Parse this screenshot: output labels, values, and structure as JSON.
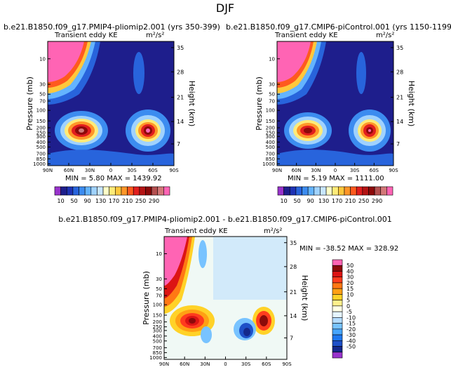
{
  "figure": {
    "title": "DJF"
  },
  "chart_data": [
    {
      "type": "heatmap",
      "title": "b.e21.B1850.f09_g17.PMIP4-pliomip2.001 (yrs 350-399)",
      "subtitle_left": "Transient eddy KE",
      "subtitle_right": "m²/s²",
      "ylabel": "Pressure (mb)",
      "ylabel_right": "Height (km)",
      "xticks": [
        "90N",
        "60N",
        "30N",
        "0",
        "30S",
        "60S",
        "90S"
      ],
      "yticks": [
        "10",
        "30",
        "50",
        "70",
        "100",
        "150",
        "200",
        "250",
        "300",
        "400",
        "500",
        "700",
        "850",
        "1000"
      ],
      "yticks_right": [
        "35",
        "28",
        "21",
        "14",
        "7"
      ],
      "stats": "MIN =    5.80   MAX = 1439.92",
      "colorbar_labels": [
        "10",
        "50",
        "90",
        "130",
        "170",
        "210",
        "250",
        "290"
      ],
      "features": [
        {
          "name": "polar-stratospheric-jet",
          "lat": 75,
          "pressure": 10,
          "value": 300
        },
        {
          "name": "nh-storm-track",
          "lat": 42,
          "pressure": 250,
          "value": 290
        },
        {
          "name": "sh-storm-track",
          "lat": -50,
          "pressure": 250,
          "value": 290
        }
      ]
    },
    {
      "type": "heatmap",
      "title": "b.e21.B1850.f09_g17.CMIP6-piControl.001 (yrs 1150-1199)",
      "subtitle_left": "Transient eddy KE",
      "subtitle_right": "m²/s²",
      "ylabel": "Pressure (mb)",
      "ylabel_right": "Height (km)",
      "xticks": [
        "90N",
        "60N",
        "30N",
        "0",
        "30S",
        "60S",
        "90S"
      ],
      "yticks": [
        "10",
        "30",
        "50",
        "70",
        "100",
        "150",
        "200",
        "250",
        "300",
        "400",
        "500",
        "700",
        "850",
        "1000"
      ],
      "yticks_right": [
        "35",
        "28",
        "21",
        "14",
        "7"
      ],
      "stats": "MIN =    5.19   MAX = 1111.00",
      "colorbar_labels": [
        "10",
        "50",
        "90",
        "130",
        "170",
        "210",
        "250",
        "290"
      ],
      "features": [
        {
          "name": "polar-stratospheric-jet",
          "lat": 75,
          "pressure": 10,
          "value": 300
        },
        {
          "name": "nh-storm-track",
          "lat": 42,
          "pressure": 250,
          "value": 270
        },
        {
          "name": "sh-storm-track",
          "lat": -50,
          "pressure": 250,
          "value": 290
        }
      ]
    },
    {
      "type": "heatmap",
      "title": "b.e21.B1850.f09_g17.PMIP4-pliomip2.001 - b.e21.B1850.f09_g17.CMIP6-piControl.001",
      "subtitle_left": "Transient eddy KE",
      "subtitle_right": "m²/s²",
      "ylabel": "Pressure (mb)",
      "ylabel_right": "Height (km)",
      "xticks": [
        "90N",
        "60N",
        "30N",
        "0",
        "30S",
        "60S",
        "90S"
      ],
      "yticks": [
        "10",
        "30",
        "50",
        "70",
        "100",
        "150",
        "200",
        "250",
        "300",
        "400",
        "500",
        "700",
        "850",
        "1000"
      ],
      "yticks_right": [
        "35",
        "28",
        "21",
        "14",
        "7"
      ],
      "stats": "MIN = -38.52   MAX = 328.92",
      "colorbar_labels": [
        "50",
        "40",
        "30",
        "20",
        "15",
        "10",
        "5",
        "0",
        "-5",
        "-10",
        "-15",
        "-20",
        "-30",
        "-40",
        "-50"
      ],
      "features": [
        {
          "name": "nh-stratosphere-increase",
          "lat": 70,
          "pressure": 10,
          "value": 50
        },
        {
          "name": "nh-storm-track-increase",
          "lat": 48,
          "pressure": 200,
          "value": 50
        },
        {
          "name": "sh-storm-track-increase",
          "lat": -57,
          "pressure": 200,
          "value": 50
        },
        {
          "name": "sh-decrease",
          "lat": -38,
          "pressure": 300,
          "value": -50
        }
      ]
    }
  ],
  "colors": {
    "abs_scale": [
      "#9933cc",
      "#1e1e8c",
      "#1e32b4",
      "#2864dc",
      "#3c8cf0",
      "#64b4ff",
      "#a0d2ff",
      "#c8e6ff",
      "#ffffc8",
      "#ffeb78",
      "#ffc83c",
      "#ff9628",
      "#ff5a1e",
      "#e11e1e",
      "#b41414",
      "#8c0a0a",
      "#b45050",
      "#d27878",
      "#ff64b4"
    ],
    "diff_scale": [
      "#ff64b4",
      "#8c0a0a",
      "#dc1414",
      "#ff3c1e",
      "#ff7814",
      "#ffa014",
      "#ffd228",
      "#fff08c",
      "#ffffe6",
      "#e6f5ff",
      "#b4dcff",
      "#78c3ff",
      "#46a5ff",
      "#1e78f0",
      "#1e50c8",
      "#14288c",
      "#9933cc"
    ]
  }
}
